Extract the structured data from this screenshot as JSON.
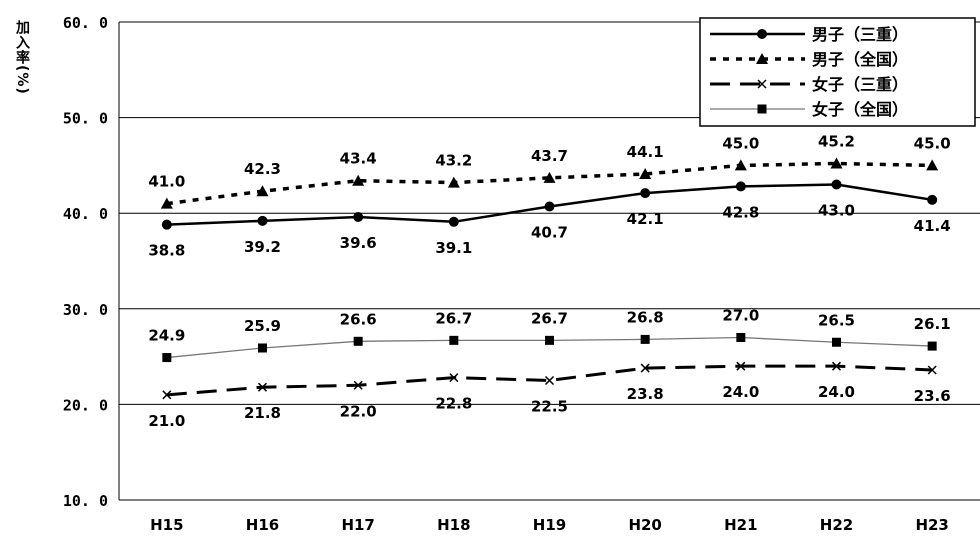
{
  "chart_data": {
    "type": "line",
    "title": "",
    "xlabel": "",
    "ylabel": "加入率(%)",
    "ylim": [
      10,
      60
    ],
    "yticks": [
      "10. 0",
      "20. 0",
      "30. 0",
      "40. 0",
      "50. 0",
      "60. 0"
    ],
    "categories": [
      "H15",
      "H16",
      "H17",
      "H18",
      "H19",
      "H20",
      "H21",
      "H22",
      "H23"
    ],
    "grid": "horizontal",
    "legend_position": "top-right",
    "series": [
      {
        "name": "男子（三重）",
        "values": [
          38.8,
          39.2,
          39.6,
          39.1,
          40.7,
          42.1,
          42.8,
          43.0,
          41.4
        ],
        "labels": [
          "38.8",
          "39.2",
          "39.6",
          "39.1",
          "40.7",
          "42.1",
          "42.8",
          "43.0",
          "41.4"
        ],
        "style": "solid",
        "marker": "circle",
        "color": "#000000",
        "label_pos": "below"
      },
      {
        "name": "男子（全国）",
        "values": [
          41.0,
          42.3,
          43.4,
          43.2,
          43.7,
          44.1,
          45.0,
          45.2,
          45.0
        ],
        "labels": [
          "41.0",
          "42.3",
          "43.4",
          "43.2",
          "43.7",
          "44.1",
          "45.0",
          "45.2",
          "45.0"
        ],
        "style": "dotted",
        "marker": "triangle",
        "color": "#000000",
        "label_pos": "above"
      },
      {
        "name": "女子（三重）",
        "values": [
          21.0,
          21.8,
          22.0,
          22.8,
          22.5,
          23.8,
          24.0,
          24.0,
          23.6
        ],
        "labels": [
          "21.0",
          "21.8",
          "22.0",
          "22.8",
          "22.5",
          "23.8",
          "24.0",
          "24.0",
          "23.6"
        ],
        "style": "dashed",
        "marker": "x",
        "color": "#000000",
        "label_pos": "below"
      },
      {
        "name": "女子（全国）",
        "values": [
          24.9,
          25.9,
          26.6,
          26.7,
          26.7,
          26.8,
          27.0,
          26.5,
          26.1
        ],
        "labels": [
          "24.9",
          "25.9",
          "26.6",
          "26.7",
          "26.7",
          "26.8",
          "27.0",
          "26.5",
          "26.1"
        ],
        "style": "thin",
        "marker": "square",
        "color": "#000000",
        "label_pos": "above"
      }
    ]
  }
}
